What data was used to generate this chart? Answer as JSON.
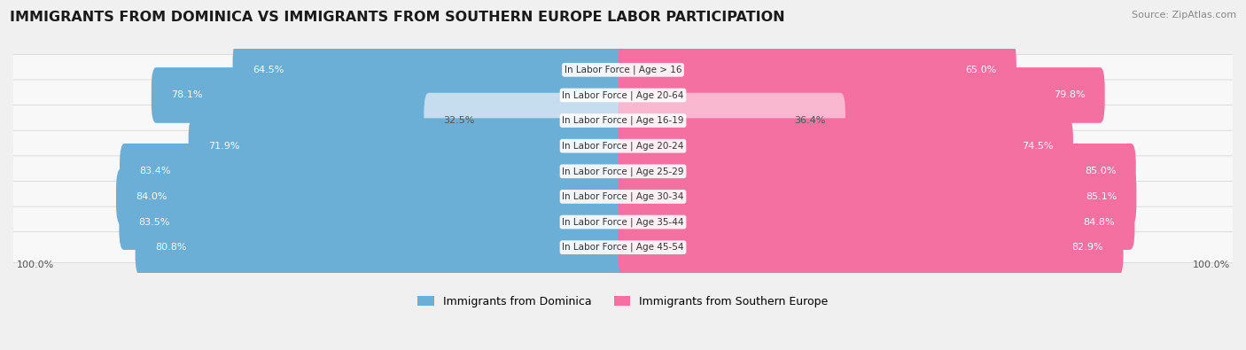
{
  "title": "IMMIGRANTS FROM DOMINICA VS IMMIGRANTS FROM SOUTHERN EUROPE LABOR PARTICIPATION",
  "source": "Source: ZipAtlas.com",
  "categories": [
    "In Labor Force | Age > 16",
    "In Labor Force | Age 20-64",
    "In Labor Force | Age 16-19",
    "In Labor Force | Age 20-24",
    "In Labor Force | Age 25-29",
    "In Labor Force | Age 30-34",
    "In Labor Force | Age 35-44",
    "In Labor Force | Age 45-54"
  ],
  "dominica_values": [
    64.5,
    78.1,
    32.5,
    71.9,
    83.4,
    84.0,
    83.5,
    80.8
  ],
  "southern_europe_values": [
    65.0,
    79.8,
    36.4,
    74.5,
    85.0,
    85.1,
    84.8,
    82.9
  ],
  "dominica_color": "#6BAED6",
  "dominica_color_light": "#C6DCEF",
  "southern_europe_color": "#F470A0",
  "southern_europe_color_light": "#F9B8D0",
  "label_dominica": "Immigrants from Dominica",
  "label_southern": "Immigrants from Southern Europe",
  "bg_color": "#f0f0f0",
  "row_bg_color": "#ffffff",
  "row_alt_color": "#f5f5f5",
  "max_value": 100.0,
  "title_fontsize": 11.5,
  "label_fontsize": 7.5,
  "value_fontsize": 8,
  "legend_fontsize": 9,
  "threshold_light": 45
}
